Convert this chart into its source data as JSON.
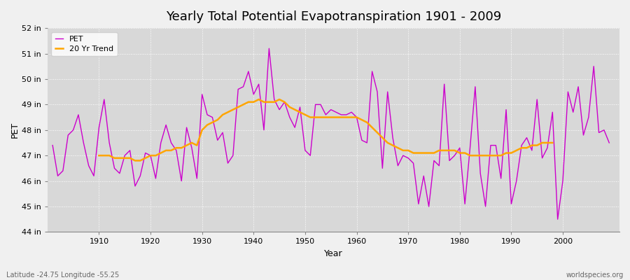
{
  "title": "Yearly Total Potential Evapotranspiration 1901 - 2009",
  "xlabel": "Year",
  "ylabel": "PET",
  "footnote_left": "Latitude -24.75 Longitude -55.25",
  "footnote_right": "worldspecies.org",
  "years": [
    1901,
    1902,
    1903,
    1904,
    1905,
    1906,
    1907,
    1908,
    1909,
    1910,
    1911,
    1912,
    1913,
    1914,
    1915,
    1916,
    1917,
    1918,
    1919,
    1920,
    1921,
    1922,
    1923,
    1924,
    1925,
    1926,
    1927,
    1928,
    1929,
    1930,
    1931,
    1932,
    1933,
    1934,
    1935,
    1936,
    1937,
    1938,
    1939,
    1940,
    1941,
    1942,
    1943,
    1944,
    1945,
    1946,
    1947,
    1948,
    1949,
    1950,
    1951,
    1952,
    1953,
    1954,
    1955,
    1956,
    1957,
    1958,
    1959,
    1960,
    1961,
    1962,
    1963,
    1964,
    1965,
    1966,
    1967,
    1968,
    1969,
    1970,
    1971,
    1972,
    1973,
    1974,
    1975,
    1976,
    1977,
    1978,
    1979,
    1980,
    1981,
    1982,
    1983,
    1984,
    1985,
    1986,
    1987,
    1988,
    1989,
    1990,
    1991,
    1992,
    1993,
    1994,
    1995,
    1996,
    1997,
    1998,
    1999,
    2000,
    2001,
    2002,
    2003,
    2004,
    2005,
    2006,
    2007,
    2008,
    2009
  ],
  "pet": [
    47.4,
    46.2,
    46.4,
    47.8,
    48.0,
    48.6,
    47.5,
    46.6,
    46.2,
    48.1,
    49.2,
    47.5,
    46.5,
    46.3,
    47.0,
    47.2,
    45.8,
    46.2,
    47.1,
    47.0,
    46.1,
    47.5,
    48.2,
    47.5,
    47.2,
    46.0,
    48.1,
    47.3,
    46.1,
    49.4,
    48.6,
    48.5,
    47.6,
    47.9,
    46.7,
    47.0,
    49.6,
    49.7,
    50.3,
    49.4,
    49.8,
    48.0,
    51.2,
    49.2,
    48.8,
    49.1,
    48.5,
    48.1,
    48.9,
    47.2,
    47.0,
    49.0,
    49.0,
    48.6,
    48.8,
    48.7,
    48.6,
    48.6,
    48.7,
    48.5,
    47.6,
    47.5,
    50.3,
    49.5,
    46.5,
    49.5,
    47.7,
    46.6,
    47.0,
    46.9,
    46.7,
    45.1,
    46.2,
    45.0,
    46.8,
    46.6,
    49.8,
    46.8,
    47.0,
    47.3,
    45.1,
    47.3,
    49.7,
    46.3,
    45.0,
    47.4,
    47.4,
    46.1,
    48.8,
    45.1,
    46.0,
    47.4,
    47.7,
    47.2,
    49.2,
    46.9,
    47.3,
    48.7,
    44.5,
    46.0,
    49.5,
    48.7,
    49.7,
    47.8,
    48.5,
    50.5,
    47.9,
    48.0,
    47.5
  ],
  "trend": [
    null,
    null,
    null,
    null,
    null,
    null,
    null,
    null,
    null,
    47.0,
    47.0,
    47.0,
    46.9,
    46.9,
    46.9,
    46.9,
    46.8,
    46.8,
    46.9,
    47.0,
    47.0,
    47.1,
    47.2,
    47.2,
    47.3,
    47.3,
    47.4,
    47.5,
    47.4,
    48.0,
    48.2,
    48.3,
    48.4,
    48.6,
    48.7,
    48.8,
    48.9,
    49.0,
    49.1,
    49.1,
    49.2,
    49.1,
    49.1,
    49.1,
    49.2,
    49.1,
    48.9,
    48.8,
    48.7,
    48.6,
    48.5,
    48.5,
    48.5,
    48.5,
    48.5,
    48.5,
    48.5,
    48.5,
    48.5,
    48.5,
    48.4,
    48.3,
    48.1,
    47.9,
    47.7,
    47.5,
    47.4,
    47.3,
    47.2,
    47.2,
    47.1,
    47.1,
    47.1,
    47.1,
    47.1,
    47.2,
    47.2,
    47.2,
    47.2,
    47.1,
    47.1,
    47.0,
    47.0,
    47.0,
    47.0,
    47.0,
    47.0,
    47.0,
    47.1,
    47.1,
    47.2,
    47.3,
    47.3,
    47.4,
    47.4,
    47.5,
    47.5,
    47.5,
    null,
    null,
    null,
    null,
    null,
    null,
    null,
    null,
    null,
    null
  ],
  "pet_color": "#cc00cc",
  "trend_color": "#ffa500",
  "background_color": "#d8d8d8",
  "plot_bg_color": "#d8d8d8",
  "outer_bg_color": "#f0f0f0",
  "grid_color": "#ffffff",
  "ylim": [
    44,
    52
  ],
  "yticks": [
    44,
    45,
    46,
    47,
    48,
    49,
    50,
    51,
    52
  ],
  "ytick_labels": [
    "44 in",
    "45 in",
    "46 in",
    "47 in",
    "48 in",
    "49 in",
    "50 in",
    "51 in",
    "52 in"
  ],
  "title_fontsize": 13,
  "legend_entries": [
    "PET",
    "20 Yr Trend"
  ],
  "xticks": [
    1910,
    1920,
    1930,
    1940,
    1950,
    1960,
    1970,
    1980,
    1990,
    2000
  ]
}
